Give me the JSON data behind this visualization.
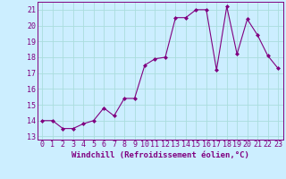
{
  "x": [
    0,
    1,
    2,
    3,
    4,
    5,
    6,
    7,
    8,
    9,
    10,
    11,
    12,
    13,
    14,
    15,
    16,
    17,
    18,
    19,
    20,
    21,
    22,
    23
  ],
  "y": [
    14.0,
    14.0,
    13.5,
    13.5,
    13.8,
    14.0,
    14.8,
    14.3,
    15.4,
    15.4,
    17.5,
    17.9,
    18.0,
    20.5,
    20.5,
    21.0,
    21.0,
    17.2,
    21.2,
    18.2,
    20.4,
    19.4,
    18.1,
    17.3
  ],
  "line_color": "#800080",
  "marker": "D",
  "marker_size": 2,
  "line_width": 0.8,
  "background_color": "#cceeff",
  "grid_color": "#aadddd",
  "xlabel": "Windchill (Refroidissement éolien,°C)",
  "xlabel_fontsize": 6.5,
  "tick_fontsize": 6.0,
  "xlim": [
    -0.5,
    23.5
  ],
  "ylim": [
    12.8,
    21.5
  ],
  "yticks": [
    13,
    14,
    15,
    16,
    17,
    18,
    19,
    20,
    21
  ],
  "xticks": [
    0,
    1,
    2,
    3,
    4,
    5,
    6,
    7,
    8,
    9,
    10,
    11,
    12,
    13,
    14,
    15,
    16,
    17,
    18,
    19,
    20,
    21,
    22,
    23
  ],
  "tick_color": "#800080",
  "label_color": "#800080",
  "spine_color": "#800080"
}
